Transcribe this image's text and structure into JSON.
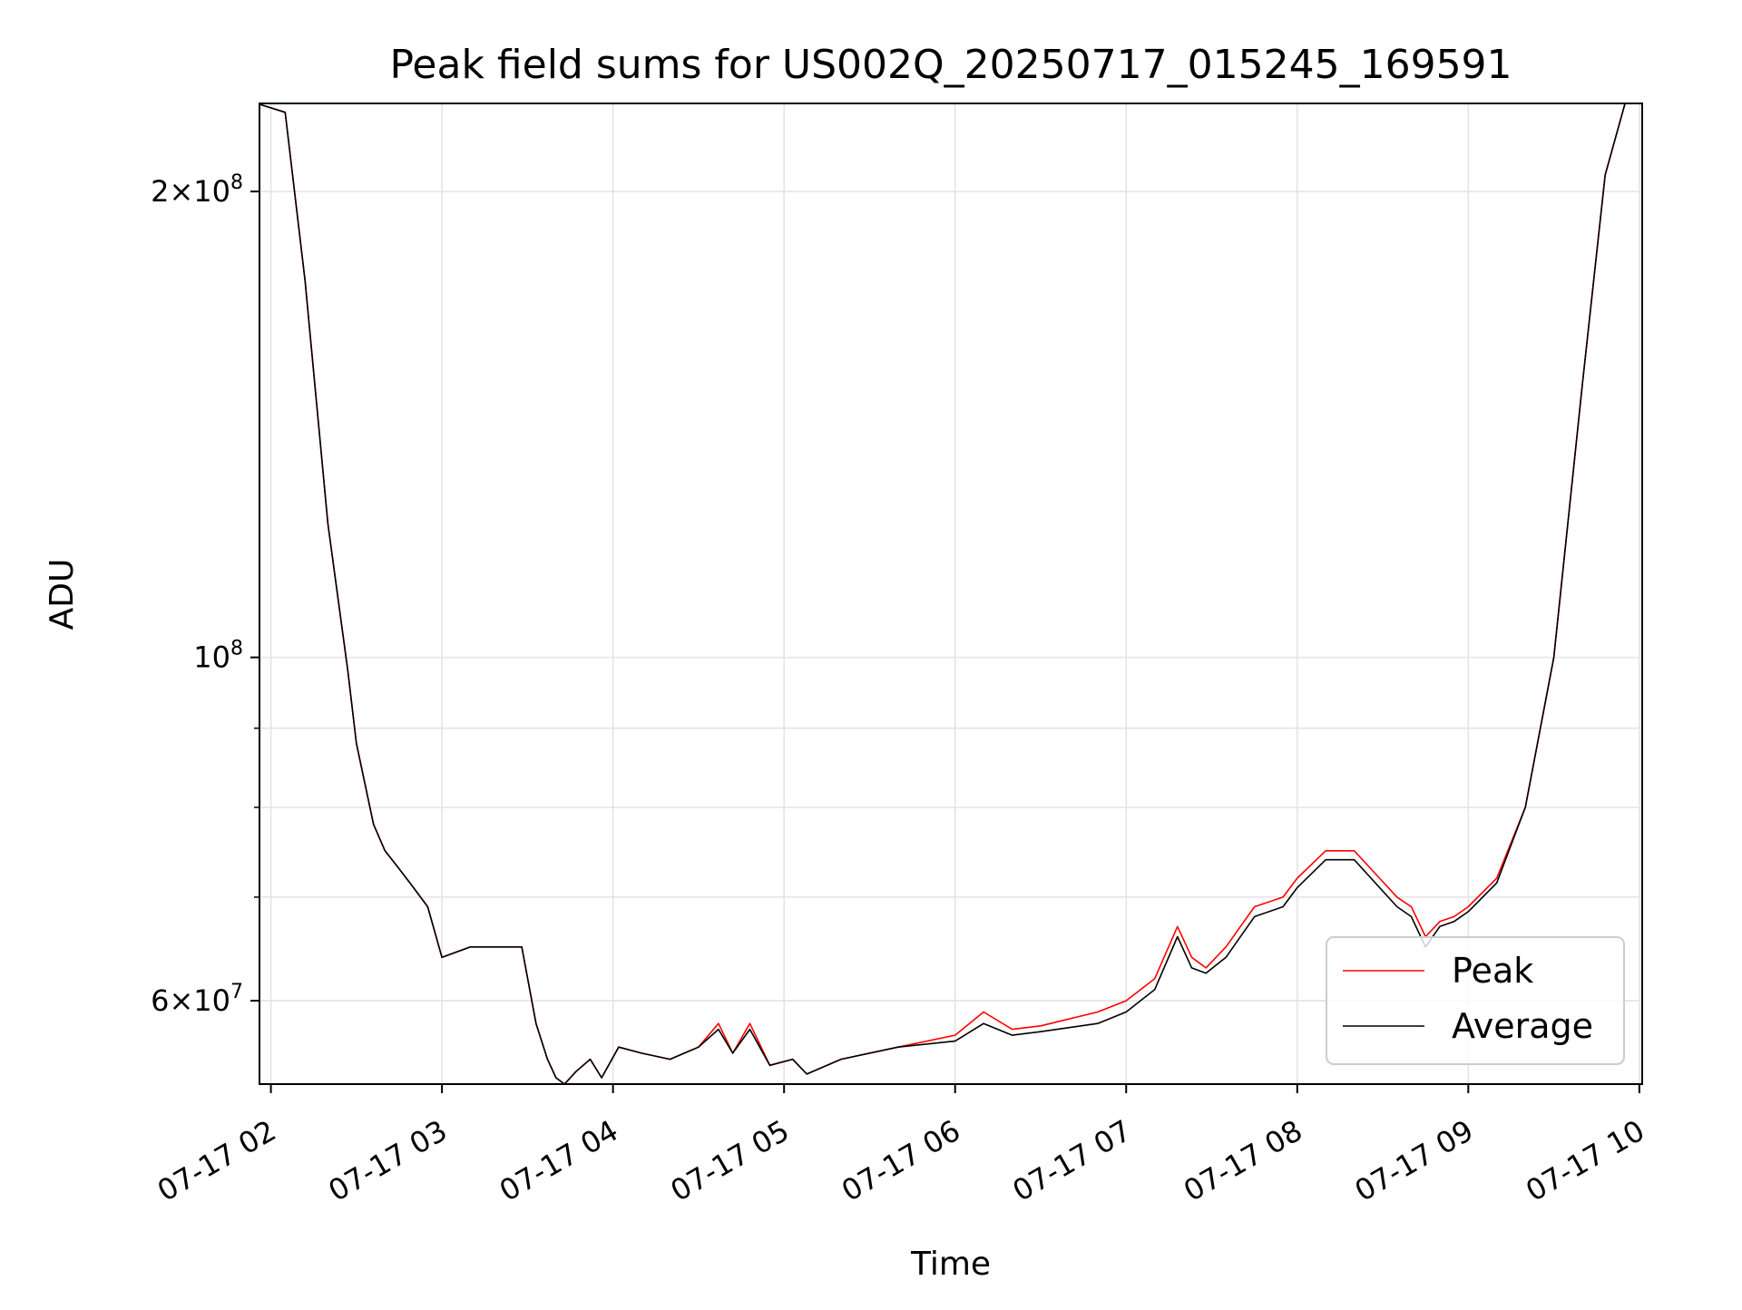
{
  "chart_data": {
    "type": "line",
    "title": "Peak field sums for US002Q_20250717_015245_169591",
    "xlabel": "Time",
    "ylabel": "ADU",
    "yscale": "log",
    "x_range": [
      "2025-07-17T01:56",
      "2025-07-17T10:01"
    ],
    "y_range": [
      53000000,
      228000000
    ],
    "grid": true,
    "legend_position": "lower-right",
    "x_ticks": [
      {
        "value": "2025-07-17T02:00",
        "label": "07-17 02"
      },
      {
        "value": "2025-07-17T03:00",
        "label": "07-17 03"
      },
      {
        "value": "2025-07-17T04:00",
        "label": "07-17 04"
      },
      {
        "value": "2025-07-17T05:00",
        "label": "07-17 05"
      },
      {
        "value": "2025-07-17T06:00",
        "label": "07-17 06"
      },
      {
        "value": "2025-07-17T07:00",
        "label": "07-17 07"
      },
      {
        "value": "2025-07-17T08:00",
        "label": "07-17 08"
      },
      {
        "value": "2025-07-17T09:00",
        "label": "07-17 09"
      },
      {
        "value": "2025-07-17T10:00",
        "label": "07-17 10"
      }
    ],
    "y_major_ticks": [
      {
        "value": 200000000,
        "base": "2×10",
        "exp": "8"
      },
      {
        "value": 100000000,
        "base": "10",
        "exp": "8"
      },
      {
        "value": 60000000,
        "base": "6×10",
        "exp": "7"
      }
    ],
    "y_minor_ticks": [
      60000000,
      70000000,
      80000000,
      90000000
    ],
    "series": [
      {
        "name": "Peak",
        "color": "#ff0000",
        "x": [
          "2025-07-17T01:55",
          "2025-07-17T02:05",
          "2025-07-17T02:12",
          "2025-07-17T02:20",
          "2025-07-17T02:27",
          "2025-07-17T02:30",
          "2025-07-17T02:36",
          "2025-07-17T02:40",
          "2025-07-17T02:45",
          "2025-07-17T02:50",
          "2025-07-17T02:55",
          "2025-07-17T03:00",
          "2025-07-17T03:10",
          "2025-07-17T03:20",
          "2025-07-17T03:28",
          "2025-07-17T03:33",
          "2025-07-17T03:37",
          "2025-07-17T03:40",
          "2025-07-17T03:43",
          "2025-07-17T03:47",
          "2025-07-17T03:52",
          "2025-07-17T03:56",
          "2025-07-17T04:02",
          "2025-07-17T04:10",
          "2025-07-17T04:20",
          "2025-07-17T04:30",
          "2025-07-17T04:37",
          "2025-07-17T04:42",
          "2025-07-17T04:48",
          "2025-07-17T04:55",
          "2025-07-17T05:03",
          "2025-07-17T05:08",
          "2025-07-17T05:20",
          "2025-07-17T05:40",
          "2025-07-17T06:00",
          "2025-07-17T06:10",
          "2025-07-17T06:20",
          "2025-07-17T06:30",
          "2025-07-17T06:50",
          "2025-07-17T07:00",
          "2025-07-17T07:10",
          "2025-07-17T07:18",
          "2025-07-17T07:23",
          "2025-07-17T07:28",
          "2025-07-17T07:35",
          "2025-07-17T07:45",
          "2025-07-17T07:55",
          "2025-07-17T08:00",
          "2025-07-17T08:10",
          "2025-07-17T08:20",
          "2025-07-17T08:35",
          "2025-07-17T08:40",
          "2025-07-17T08:45",
          "2025-07-17T08:50",
          "2025-07-17T08:55",
          "2025-07-17T09:00",
          "2025-07-17T09:10",
          "2025-07-17T09:20",
          "2025-07-17T09:30",
          "2025-07-17T09:40",
          "2025-07-17T09:48",
          "2025-07-17T09:55"
        ],
        "values": [
          228000000,
          225000000,
          175000000,
          122000000,
          98000000,
          88000000,
          78000000,
          75000000,
          73000000,
          71000000,
          69000000,
          64000000,
          65000000,
          65000000,
          65000000,
          58000000,
          55000000,
          53500000,
          53000000,
          54000000,
          55000000,
          53500000,
          56000000,
          55500000,
          55000000,
          56000000,
          58000000,
          55500000,
          58000000,
          54500000,
          55000000,
          53800000,
          55000000,
          56000000,
          57000000,
          59000000,
          57500000,
          57800000,
          59000000,
          60000000,
          62000000,
          67000000,
          64000000,
          63000000,
          65000000,
          69000000,
          70000000,
          72000000,
          75000000,
          75000000,
          70000000,
          69000000,
          66000000,
          67500000,
          68000000,
          69000000,
          72000000,
          80000000,
          100000000,
          150000000,
          205000000,
          228000000
        ]
      },
      {
        "name": "Average",
        "color": "#000000",
        "x": [
          "2025-07-17T01:55",
          "2025-07-17T02:05",
          "2025-07-17T02:12",
          "2025-07-17T02:20",
          "2025-07-17T02:27",
          "2025-07-17T02:30",
          "2025-07-17T02:36",
          "2025-07-17T02:40",
          "2025-07-17T02:45",
          "2025-07-17T02:50",
          "2025-07-17T02:55",
          "2025-07-17T03:00",
          "2025-07-17T03:10",
          "2025-07-17T03:20",
          "2025-07-17T03:28",
          "2025-07-17T03:33",
          "2025-07-17T03:37",
          "2025-07-17T03:40",
          "2025-07-17T03:43",
          "2025-07-17T03:47",
          "2025-07-17T03:52",
          "2025-07-17T03:56",
          "2025-07-17T04:02",
          "2025-07-17T04:10",
          "2025-07-17T04:20",
          "2025-07-17T04:30",
          "2025-07-17T04:37",
          "2025-07-17T04:42",
          "2025-07-17T04:48",
          "2025-07-17T04:55",
          "2025-07-17T05:03",
          "2025-07-17T05:08",
          "2025-07-17T05:20",
          "2025-07-17T05:40",
          "2025-07-17T06:00",
          "2025-07-17T06:10",
          "2025-07-17T06:20",
          "2025-07-17T06:30",
          "2025-07-17T06:50",
          "2025-07-17T07:00",
          "2025-07-17T07:10",
          "2025-07-17T07:18",
          "2025-07-17T07:23",
          "2025-07-17T07:28",
          "2025-07-17T07:35",
          "2025-07-17T07:45",
          "2025-07-17T07:55",
          "2025-07-17T08:00",
          "2025-07-17T08:10",
          "2025-07-17T08:20",
          "2025-07-17T08:35",
          "2025-07-17T08:40",
          "2025-07-17T08:45",
          "2025-07-17T08:50",
          "2025-07-17T08:55",
          "2025-07-17T09:00",
          "2025-07-17T09:10",
          "2025-07-17T09:20",
          "2025-07-17T09:30",
          "2025-07-17T09:40",
          "2025-07-17T09:48",
          "2025-07-17T09:55"
        ],
        "values": [
          228000000,
          225000000,
          175000000,
          122000000,
          98000000,
          88000000,
          78000000,
          75000000,
          73000000,
          71000000,
          69000000,
          64000000,
          65000000,
          65000000,
          65000000,
          58000000,
          55000000,
          53500000,
          53000000,
          54000000,
          55000000,
          53500000,
          56000000,
          55500000,
          55000000,
          56000000,
          57500000,
          55500000,
          57500000,
          54500000,
          55000000,
          53800000,
          55000000,
          56000000,
          56500000,
          58000000,
          57000000,
          57300000,
          58000000,
          59000000,
          61000000,
          66000000,
          63000000,
          62500000,
          64000000,
          68000000,
          69000000,
          71000000,
          74000000,
          74000000,
          69000000,
          68000000,
          65000000,
          67000000,
          67500000,
          68500000,
          71500000,
          80000000,
          100000000,
          150000000,
          205000000,
          228000000
        ]
      }
    ]
  }
}
